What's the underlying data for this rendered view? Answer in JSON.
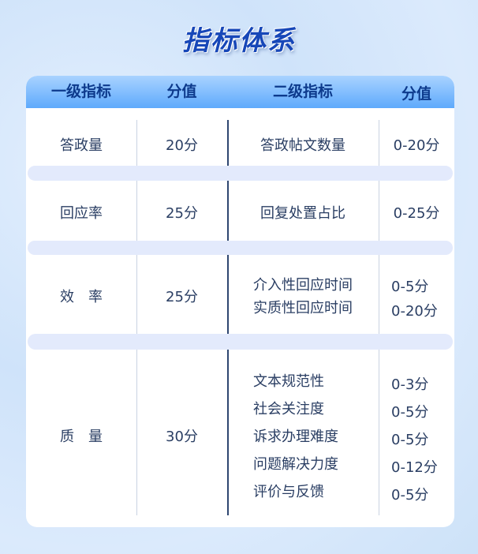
{
  "title": "指标体系",
  "headers": [
    "一级指标",
    "分值",
    "二级指标",
    "分值"
  ],
  "rows": [
    {
      "primary": "答政量",
      "score": "20分",
      "secondary": [
        "答政帖文数量"
      ],
      "sub_scores": [
        "0-20分"
      ]
    },
    {
      "primary": "回应率",
      "score": "25分",
      "secondary": [
        "回复处置占比"
      ],
      "sub_scores": [
        "0-25分"
      ]
    },
    {
      "primary": "效　率",
      "score": "25分",
      "secondary": [
        "介入性回应时间",
        "实质性回应时间"
      ],
      "sub_scores": [
        "0-5分",
        "0-20分"
      ]
    },
    {
      "primary": "质　量",
      "score": "30分",
      "secondary": [
        "文本规范性",
        "社会关注度",
        "诉求办理难度",
        "问题解决力度",
        "评价与反馈"
      ],
      "sub_scores": [
        "0-3分",
        "0-5分",
        "0-5分",
        "0-12分",
        "0-5分"
      ]
    }
  ]
}
